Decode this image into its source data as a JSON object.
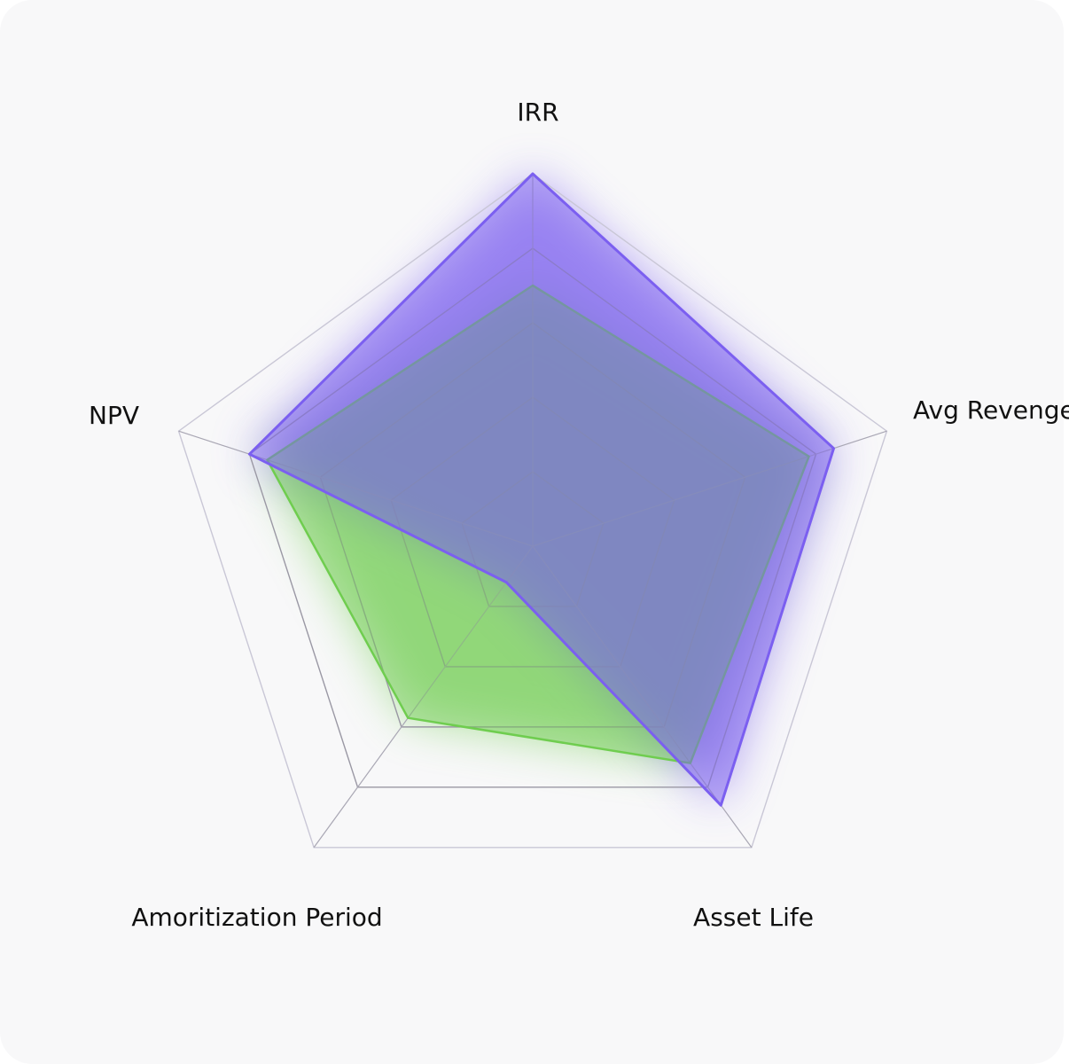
{
  "chart_data": {
    "type": "radar",
    "axes": [
      "IRR",
      "Avg Revenge",
      "Asset Life",
      "Amoritization Period",
      "NPV"
    ],
    "scale": [
      0,
      1
    ],
    "rings": 5,
    "grid": true,
    "series": [
      {
        "values": [
          1.0,
          0.85,
          0.86,
          0.12,
          0.8
        ],
        "color": "#7b5ff0"
      },
      {
        "values": [
          0.7,
          0.78,
          0.72,
          0.57,
          0.75
        ],
        "color": "#6fcd4f"
      }
    ]
  }
}
